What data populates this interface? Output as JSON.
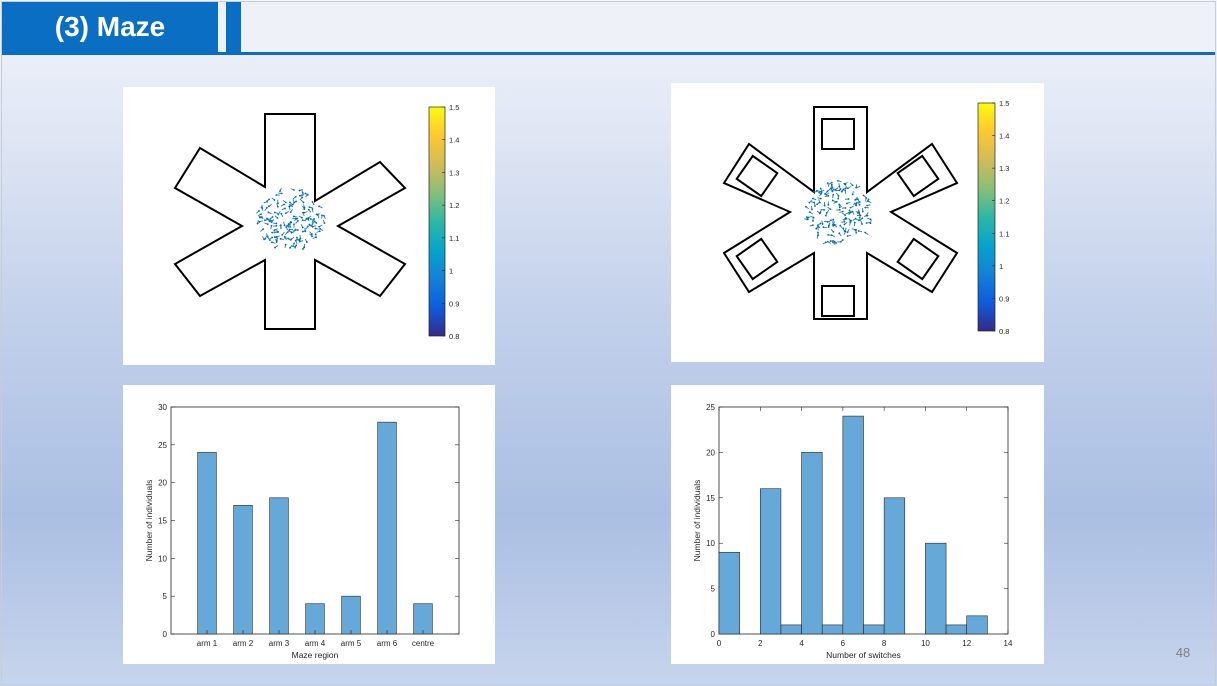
{
  "slide": {
    "title": "(3) Maze",
    "page_number": "48"
  },
  "colorbar_left": {
    "ticks": [
      "1.5",
      "1.4",
      "1.3",
      "1.2",
      "1.1",
      "1",
      "0.9",
      "0.8"
    ],
    "min": 0.8,
    "max": 1.5
  },
  "colorbar_right": {
    "ticks": [
      "1.5",
      "1.4",
      "1.3",
      "1.2",
      "1.1",
      "1",
      "0.9",
      "0.8"
    ],
    "min": 0.8,
    "max": 1.5
  },
  "chart_data": [
    {
      "type": "scatter",
      "description": "star-shaped maze, six arms, no obstacles, agents clustered in centre",
      "colorbar_range": [
        0.8,
        1.5
      ]
    },
    {
      "type": "scatter",
      "description": "star-shaped maze, six arms, square obstacle in each arm, agents clustered in centre",
      "colorbar_range": [
        0.8,
        1.5
      ]
    },
    {
      "type": "bar",
      "categories": [
        "arm 1",
        "arm 2",
        "arm 3",
        "arm 4",
        "arm 5",
        "arm 6",
        "centre"
      ],
      "values": [
        24,
        17,
        18,
        4,
        5,
        28,
        4
      ],
      "xlabel": "Maze region",
      "ylabel": "Number of individuals",
      "ylim": [
        0,
        30
      ],
      "yticks": [
        "0",
        "5",
        "10",
        "15",
        "20",
        "25",
        "30"
      ],
      "color": "#66a9d8"
    },
    {
      "type": "bar",
      "subtype": "histogram",
      "bin_edges": [
        0,
        1,
        2,
        3,
        4,
        5,
        6,
        7,
        8,
        9,
        10,
        11,
        12,
        13
      ],
      "values": [
        9,
        0,
        16,
        1,
        20,
        1,
        24,
        1,
        15,
        0,
        10,
        1,
        2
      ],
      "xlabel": "Number of switches",
      "ylabel": "Number of individuals",
      "xlim": [
        0,
        14
      ],
      "ylim": [
        0,
        25
      ],
      "xticks": [
        "0",
        "2",
        "4",
        "6",
        "8",
        "10",
        "12",
        "14"
      ],
      "yticks": [
        "0",
        "5",
        "10",
        "15",
        "20",
        "25"
      ],
      "color": "#66a9d8"
    }
  ]
}
